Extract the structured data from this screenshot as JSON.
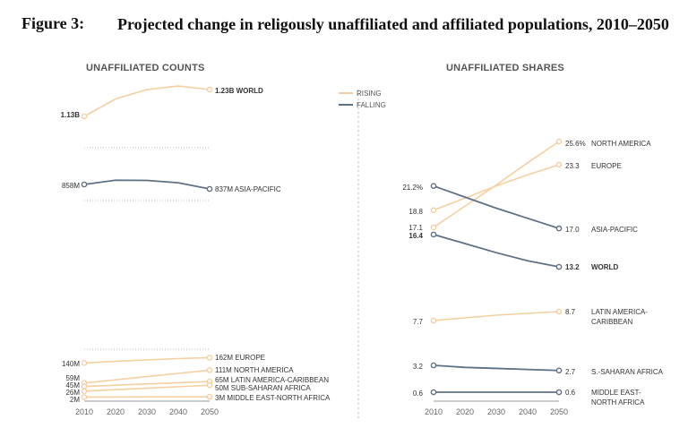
{
  "figure": {
    "label": "Figure 3:",
    "title": "Projected change in religously unaffiliated and affiliated populations, 2010–2050"
  },
  "legend": {
    "rising": "RISING",
    "falling": "FALLING"
  },
  "colors": {
    "rising": "#f5cfa0",
    "falling": "#5e7186",
    "text": "#333333",
    "grid": "#bbbbbb",
    "axis": "#999999"
  },
  "chart_data": [
    {
      "type": "line",
      "title": "UNAFFILIATED COUNTS",
      "x": [
        2010,
        2020,
        2030,
        2040,
        2050
      ],
      "xlim": [
        2010,
        2050
      ],
      "series": [
        {
          "name": "WORLD",
          "trend": "rising",
          "emphasis": true,
          "start_label": "1.13B",
          "end_label": "1.23B",
          "values": [
            1.13,
            1.195,
            1.23,
            1.243,
            1.23
          ]
        },
        {
          "name": "ASIA-PACIFIC",
          "trend": "falling",
          "start_label": "858M",
          "end_label": "837M",
          "values": [
            0.858,
            0.878,
            0.877,
            0.866,
            0.837
          ]
        },
        {
          "name": "EUROPE",
          "trend": "rising",
          "start_label": "140M",
          "end_label": "162M",
          "values": [
            0.14,
            0.147,
            0.153,
            0.158,
            0.162
          ]
        },
        {
          "name": "NORTH AMERICA",
          "trend": "rising",
          "start_label": "59M",
          "end_label": "111M",
          "values": [
            0.059,
            0.072,
            0.085,
            0.098,
            0.111
          ]
        },
        {
          "name": "LATIN AMERICA-CARIBBEAN",
          "trend": "rising",
          "start_label": "45M",
          "end_label": "65M",
          "values": [
            0.045,
            0.05,
            0.055,
            0.06,
            0.065
          ]
        },
        {
          "name": "SUB-SAHARAN AFRICA",
          "trend": "rising",
          "start_label": "26M",
          "end_label": "50M",
          "values": [
            0.026,
            0.032,
            0.038,
            0.044,
            0.05
          ]
        },
        {
          "name": "MIDDLE EAST-NORTH AFRICA",
          "trend": "rising",
          "start_label": "2M",
          "end_label": "3M",
          "values": [
            0.002,
            0.002,
            0.003,
            0.003,
            0.003
          ]
        }
      ]
    },
    {
      "type": "line",
      "title": "UNAFFILIATED SHARES",
      "x": [
        2010,
        2020,
        2030,
        2040,
        2050
      ],
      "xlim": [
        2010,
        2050
      ],
      "series": [
        {
          "name": "NORTH AMERICA",
          "trend": "rising",
          "start_label": "17.1",
          "end_label": "25.6% NORTH AMERICA",
          "values": [
            17.1,
            19.2,
            21.3,
            23.5,
            25.6
          ]
        },
        {
          "name": "EUROPE",
          "trend": "rising",
          "start_label": "18.8",
          "end_label": "23.3 EUROPE",
          "values": [
            18.8,
            20.0,
            21.2,
            22.3,
            23.3
          ]
        },
        {
          "name": "ASIA-PACIFIC",
          "trend": "falling",
          "start_label": "21.2%",
          "end_label": "17.0 ASIA-PACIFIC",
          "values": [
            21.2,
            20.1,
            19.0,
            18.0,
            17.0
          ]
        },
        {
          "name": "WORLD",
          "trend": "falling",
          "emphasis": true,
          "start_label": "16.4",
          "end_label": "13.2 WORLD",
          "values": [
            16.4,
            15.5,
            14.6,
            13.8,
            13.2
          ]
        },
        {
          "name": "LATIN AMERICA-CARIBBEAN",
          "trend": "rising",
          "start_label": "7.7",
          "end_label": "8.7 LATIN AMERICA-CARIBBEAN",
          "values": [
            7.7,
            8.0,
            8.3,
            8.5,
            8.7
          ]
        },
        {
          "name": "SUB-SAHARAN AFRICA",
          "trend": "falling",
          "start_label": "3.2",
          "end_label": "2.7 S.-SAHARAN AFRICA",
          "values": [
            3.2,
            3.0,
            2.9,
            2.8,
            2.7
          ]
        },
        {
          "name": "MIDDLE EAST-NORTH AFRICA",
          "trend": "falling",
          "start_label": "0.6",
          "end_label": "0.6 MIDDLE EAST-NORTH AFRICA",
          "values": [
            0.6,
            0.6,
            0.6,
            0.6,
            0.6
          ]
        }
      ]
    }
  ]
}
